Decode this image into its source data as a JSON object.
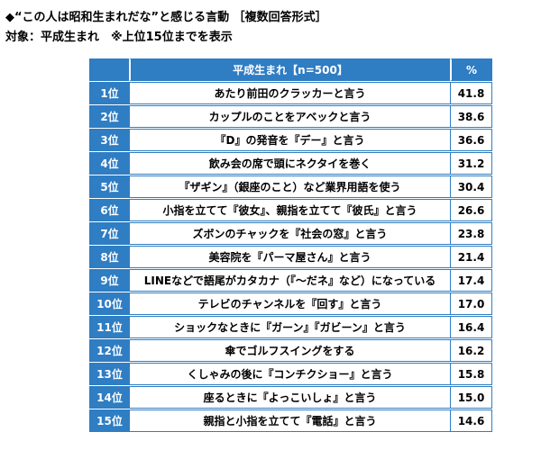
{
  "header": {
    "title": "◆“この人は昭和生まれだな”と感じる言動 ［複数回答形式］",
    "subtitle": "対象：平成生まれ　※上位15位までを表示"
  },
  "table": {
    "column_header": "平成生まれ【n=500】",
    "value_header": "%",
    "rows": [
      {
        "rank": "1位",
        "item": "あたり前田のクラッカーと言う",
        "value": "41.8"
      },
      {
        "rank": "2位",
        "item": "カップルのことをアベックと言う",
        "value": "38.6"
      },
      {
        "rank": "3位",
        "item": "『D』の発音を『デー』と言う",
        "value": "36.6"
      },
      {
        "rank": "4位",
        "item": "飲み会の席で頭にネクタイを巻く",
        "value": "31.2"
      },
      {
        "rank": "5位",
        "item": "『ザギン』（銀座のこと）など業界用語を使う",
        "value": "30.4"
      },
      {
        "rank": "6位",
        "item": "小指を立てて『彼女』、親指を立てて『彼氏』と言う",
        "value": "26.6"
      },
      {
        "rank": "7位",
        "item": "ズボンのチャックを『社会の窓』と言う",
        "value": "23.8"
      },
      {
        "rank": "8位",
        "item": "美容院を『パーマ屋さん』と言う",
        "value": "21.4"
      },
      {
        "rank": "9位",
        "item": "LINEなどで語尾がカタカナ（『～だネ』など）になっている",
        "value": "17.4"
      },
      {
        "rank": "10位",
        "item": "テレビのチャンネルを『回す』と言う",
        "value": "17.0"
      },
      {
        "rank": "11位",
        "item": "ショックなときに『ガーン』『ガビーン』と言う",
        "value": "16.4"
      },
      {
        "rank": "12位",
        "item": "傘でゴルフスイングをする",
        "value": "16.2"
      },
      {
        "rank": "13位",
        "item": "くしゃみの後に『コンチクショー』と言う",
        "value": "15.8"
      },
      {
        "rank": "14位",
        "item": "座るときに『よっこいしょ』と言う",
        "value": "15.0"
      },
      {
        "rank": "15位",
        "item": "親指と小指を立てて『電話』と言う",
        "value": "14.6"
      }
    ]
  }
}
